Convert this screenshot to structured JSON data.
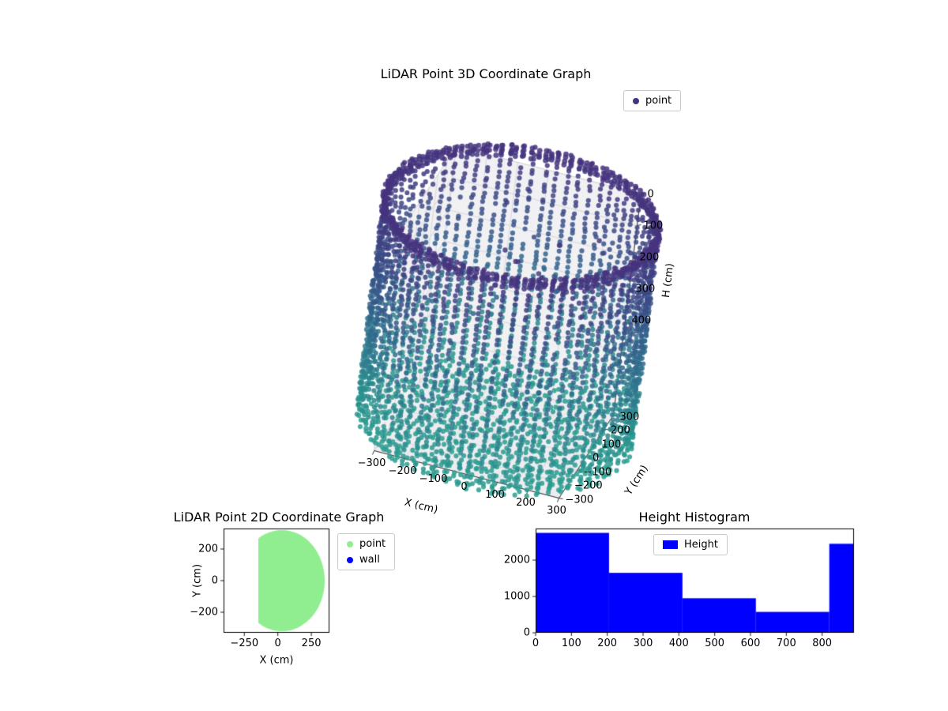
{
  "figure": {
    "background": "#ffffff"
  },
  "chart_data": [
    {
      "id": "lidar-3d",
      "type": "scatter3d",
      "title": "LiDAR Point 3D Coordinate Graph",
      "legend": [
        {
          "label": "point",
          "color": "#46327e"
        }
      ],
      "xlabel": "X (cm)",
      "ylabel": "Y (cm)",
      "zlabel": "H (cm)",
      "xlim": [
        -300,
        300
      ],
      "ylim": [
        -300,
        300
      ],
      "zlim": [
        0,
        700
      ],
      "xticks": [
        {
          "v": -300,
          "label": "−300"
        },
        {
          "v": -200,
          "label": "−200"
        },
        {
          "v": -100,
          "label": "−100"
        },
        {
          "v": 0,
          "label": "0"
        },
        {
          "v": 100,
          "label": "100"
        },
        {
          "v": 200,
          "label": "200"
        },
        {
          "v": 300,
          "label": "300"
        }
      ],
      "yticks": [
        {
          "v": -300,
          "label": "−300"
        },
        {
          "v": -200,
          "label": "−200"
        },
        {
          "v": -100,
          "label": "−100"
        },
        {
          "v": 0,
          "label": "0"
        },
        {
          "v": 100,
          "label": "100"
        },
        {
          "v": 200,
          "label": "200"
        },
        {
          "v": 300,
          "label": "300"
        }
      ],
      "zticks": [
        {
          "v": 0,
          "label": "0"
        },
        {
          "v": 100,
          "label": "100"
        },
        {
          "v": 200,
          "label": "200"
        },
        {
          "v": 300,
          "label": "300"
        },
        {
          "v": 400,
          "label": "400"
        }
      ],
      "point_cloud": {
        "shape": "cylinder",
        "radius_cm": 425,
        "height_cm": 680,
        "wall_columns": 72,
        "wall_rows": 41,
        "floor_grid_step_cm": 26,
        "colormap_stops": [
          "#46327e",
          "#33638d",
          "#2a9d8f"
        ],
        "marker_alpha": 0.85
      },
      "grid": true
    },
    {
      "id": "lidar-2d",
      "type": "scatter",
      "title": "LiDAR Point 2D Coordinate Graph",
      "xlabel": "X (cm)",
      "ylabel": "Y (cm)",
      "xlim": [
        -405,
        385
      ],
      "ylim": [
        -330,
        330
      ],
      "xticks": [
        {
          "v": -250,
          "label": "−250"
        },
        {
          "v": 0,
          "label": "0"
        },
        {
          "v": 250,
          "label": "250"
        }
      ],
      "yticks": [
        {
          "v": 200,
          "label": "200"
        },
        {
          "v": 0,
          "label": "0"
        },
        {
          "v": -200,
          "label": "−200"
        }
      ],
      "legend": [
        {
          "label": "point",
          "color": "#90ee90"
        },
        {
          "label": "wall",
          "color": "#0000ff"
        }
      ],
      "blob": {
        "center_x": 30,
        "center_y": 0,
        "radius": 320,
        "x_min_cut": -145,
        "color": "#90ee90"
      }
    },
    {
      "id": "height-histogram",
      "type": "bar",
      "title": "Height Histogram",
      "legend": [
        {
          "label": "Height",
          "color": "#0000ff"
        }
      ],
      "bar_color": "#0000ff",
      "xlim": [
        0,
        889
      ],
      "ylim": [
        0,
        2870
      ],
      "bin_edges": [
        0,
        205,
        410,
        615,
        820,
        889
      ],
      "counts": [
        2750,
        1650,
        950,
        575,
        2450
      ],
      "xticks": [
        {
          "v": 0,
          "label": "0"
        },
        {
          "v": 100,
          "label": "100"
        },
        {
          "v": 200,
          "label": "200"
        },
        {
          "v": 300,
          "label": "300"
        },
        {
          "v": 400,
          "label": "400"
        },
        {
          "v": 500,
          "label": "500"
        },
        {
          "v": 600,
          "label": "600"
        },
        {
          "v": 700,
          "label": "700"
        },
        {
          "v": 800,
          "label": "800"
        }
      ],
      "yticks": [
        {
          "v": 0,
          "label": "0"
        },
        {
          "v": 1000,
          "label": "1000"
        },
        {
          "v": 2000,
          "label": "2000"
        }
      ]
    }
  ]
}
